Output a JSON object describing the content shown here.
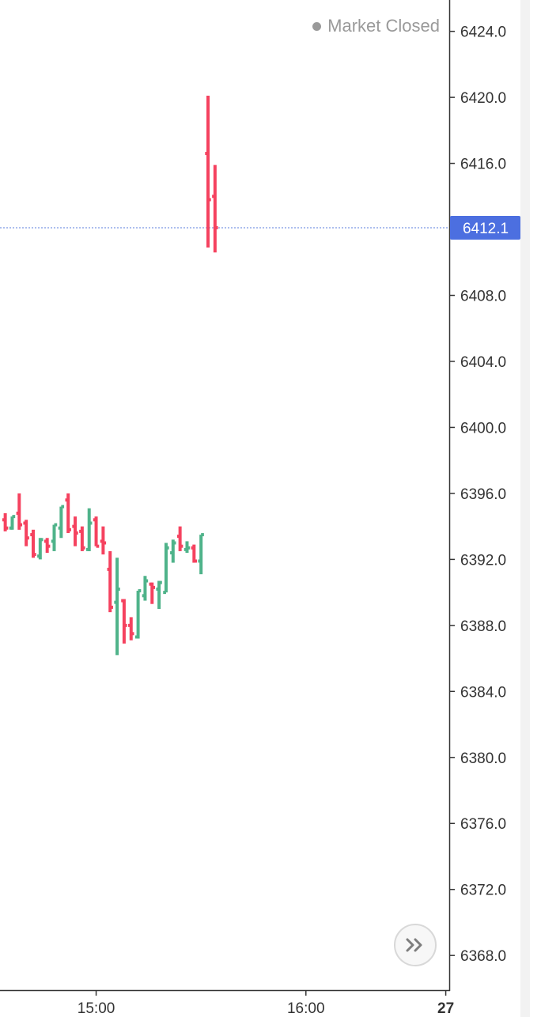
{
  "status": {
    "label": "Market Closed",
    "dot_color": "#9a9a9a"
  },
  "colors": {
    "up": "#4fb38a",
    "down": "#f5425f",
    "price_line": "#5b7fde",
    "axis": "#333333",
    "badge": "#4c6fe0"
  },
  "current_price": {
    "label": "6412.1",
    "value": 6412.1
  },
  "scroll_button": {
    "icon": "double-chevron-right-icon"
  },
  "chart_data": {
    "type": "ohlc",
    "yaxis": {
      "ticks": [
        "6424.0",
        "6420.0",
        "6416.0",
        "6412.0",
        "6408.0",
        "6404.0",
        "6400.0",
        "6396.0",
        "6392.0",
        "6388.0",
        "6384.0",
        "6380.0",
        "6376.0",
        "6372.0",
        "6368.0"
      ],
      "tick_values": [
        6424,
        6420,
        6416,
        6412,
        6408,
        6404,
        6400,
        6396,
        6392,
        6388,
        6384,
        6380,
        6376,
        6372,
        6368
      ],
      "range": [
        6365.9,
        6425.9
      ],
      "position": "right"
    },
    "xaxis": {
      "labels": [
        {
          "text": "15:00",
          "minute": 0,
          "bold": false
        },
        {
          "text": "16:00",
          "minute": 60,
          "bold": false
        },
        {
          "text": "27",
          "minute": 100,
          "bold": true
        }
      ],
      "visible_minutes": [
        -27.5,
        101.0
      ],
      "bar_interval_minutes": 2
    },
    "bars": [
      {
        "t": -26,
        "o": 6394.4,
        "h": 6394.8,
        "l": 6393.7,
        "c": 6393.9
      },
      {
        "t": -24,
        "o": 6393.9,
        "h": 6394.6,
        "l": 6393.8,
        "c": 6394.6
      },
      {
        "t": -22,
        "o": 6394.8,
        "h": 6396.0,
        "l": 6393.8,
        "c": 6394.1
      },
      {
        "t": -20,
        "o": 6394.2,
        "h": 6394.4,
        "l": 6392.8,
        "c": 6393.3
      },
      {
        "t": -18,
        "o": 6393.5,
        "h": 6393.8,
        "l": 6392.1,
        "c": 6392.3
      },
      {
        "t": -16,
        "o": 6392.2,
        "h": 6393.3,
        "l": 6392.0,
        "c": 6393.2
      },
      {
        "t": -14,
        "o": 6393.1,
        "h": 6393.3,
        "l": 6392.4,
        "c": 6392.8
      },
      {
        "t": -12,
        "o": 6393.1,
        "h": 6394.1,
        "l": 6392.5,
        "c": 6394.1
      },
      {
        "t": -10,
        "o": 6393.9,
        "h": 6395.2,
        "l": 6393.3,
        "c": 6395.2
      },
      {
        "t": -8,
        "o": 6395.6,
        "h": 6396.0,
        "l": 6393.6,
        "c": 6393.8
      },
      {
        "t": -6,
        "o": 6394.0,
        "h": 6394.6,
        "l": 6392.8,
        "c": 6393.6
      },
      {
        "t": -4,
        "o": 6393.7,
        "h": 6394.0,
        "l": 6392.5,
        "c": 6392.7
      },
      {
        "t": -2,
        "o": 6392.6,
        "h": 6395.1,
        "l": 6392.5,
        "c": 6394.2
      },
      {
        "t": 0,
        "o": 6394.4,
        "h": 6394.6,
        "l": 6392.8,
        "c": 6392.8
      },
      {
        "t": 2,
        "o": 6393.1,
        "h": 6394.0,
        "l": 6392.3,
        "c": 6393.0
      },
      {
        "t": 4,
        "o": 6391.4,
        "h": 6392.5,
        "l": 6388.8,
        "c": 6389.1
      },
      {
        "t": 6,
        "o": 6389.4,
        "h": 6392.1,
        "l": 6386.2,
        "c": 6390.2
      },
      {
        "t": 8,
        "o": 6389.5,
        "h": 6389.6,
        "l": 6386.9,
        "c": 6388.0
      },
      {
        "t": 10,
        "o": 6388.0,
        "h": 6388.5,
        "l": 6387.1,
        "c": 6387.5
      },
      {
        "t": 12,
        "o": 6387.3,
        "h": 6390.1,
        "l": 6387.2,
        "c": 6390.1
      },
      {
        "t": 14,
        "o": 6389.8,
        "h": 6391.0,
        "l": 6389.5,
        "c": 6390.7
      },
      {
        "t": 16,
        "o": 6390.5,
        "h": 6390.6,
        "l": 6389.3,
        "c": 6390.3
      },
      {
        "t": 18,
        "o": 6390.2,
        "h": 6390.7,
        "l": 6389.0,
        "c": 6390.6
      },
      {
        "t": 20,
        "o": 6390.0,
        "h": 6393.0,
        "l": 6390.0,
        "c": 6392.7
      },
      {
        "t": 22,
        "o": 6392.4,
        "h": 6393.2,
        "l": 6391.8,
        "c": 6393.0
      },
      {
        "t": 24,
        "o": 6393.4,
        "h": 6394.0,
        "l": 6392.5,
        "c": 6392.8
      },
      {
        "t": 26,
        "o": 6392.6,
        "h": 6393.1,
        "l": 6392.4,
        "c": 6392.7
      },
      {
        "t": 28,
        "o": 6392.7,
        "h": 6392.9,
        "l": 6391.8,
        "c": 6391.9
      },
      {
        "t": 30,
        "o": 6391.9,
        "h": 6393.5,
        "l": 6391.1,
        "c": 6393.5
      },
      {
        "t": 32,
        "o": 6416.6,
        "h": 6420.1,
        "l": 6410.9,
        "c": 6413.8
      },
      {
        "t": 34,
        "o": 6414.0,
        "h": 6415.9,
        "l": 6410.6,
        "c": 6412.1
      }
    ]
  }
}
